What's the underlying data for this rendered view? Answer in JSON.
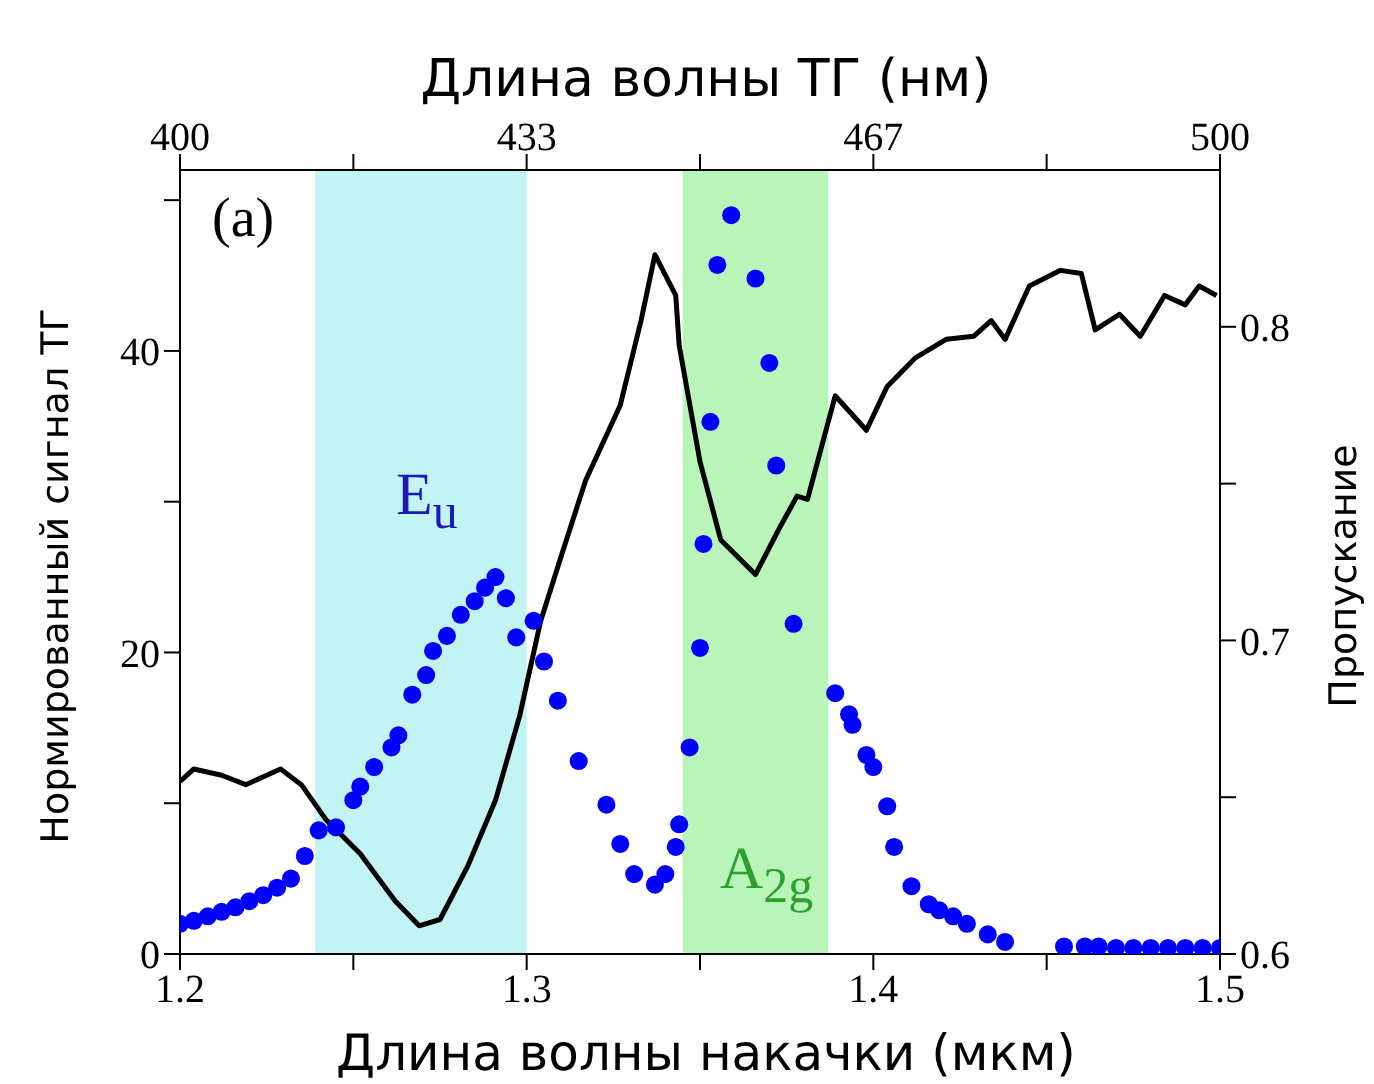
{
  "chart_data": {
    "type": "scatter",
    "xlabel": "Длина волны накачки (мкм)",
    "x2label": "Длина волны ТГ (нм)",
    "ylabel": "Нормированный сигнал ТГ",
    "y2label": "Пропускание",
    "xlim": [
      1.2,
      1.5
    ],
    "xticks": [
      1.2,
      {
        "value": 1.25,
        "label": null
      },
      1.3,
      {
        "value": 1.35,
        "label": null
      },
      1.4,
      {
        "value": 1.45,
        "label": null
      },
      1.5
    ],
    "x2lim": [
      400,
      500
    ],
    "x2ticks": [
      400,
      {
        "value": 416.67,
        "label": null
      },
      {
        "value": 433.33,
        "label": "433"
      },
      {
        "value": 450,
        "label": null
      },
      {
        "value": 466.67,
        "label": "467"
      },
      {
        "value": 483.33,
        "label": null
      },
      500
    ],
    "ylim": [
      0,
      52
    ],
    "yticks": [
      0,
      {
        "value": 10,
        "label": null
      },
      20,
      {
        "value": 30,
        "label": null
      },
      40,
      {
        "value": 50,
        "label": null
      }
    ],
    "y2lim": [
      0.6,
      0.85
    ],
    "y2ticks": [
      0.6,
      {
        "value": 0.65,
        "label": null
      },
      0.7,
      {
        "value": 0.75,
        "label": null
      },
      0.8
    ],
    "grid": false,
    "legend": false,
    "bands": [
      {
        "axis": "x",
        "from": 1.239,
        "to": 1.3,
        "color": "#c2f3f5"
      },
      {
        "axis": "x",
        "from": 1.345,
        "to": 1.387,
        "color": "#b9f5b9"
      }
    ],
    "annotations": [
      "(a)",
      "E$_{u}$",
      "A$_{2g}$"
    ],
    "series": [
      {
        "marker": "circle",
        "color": "#0000ff",
        "x": [
          1.2,
          1.204,
          1.208,
          1.212,
          1.216,
          1.22,
          1.224,
          1.228,
          1.232,
          1.236,
          1.24,
          1.245,
          1.25,
          1.252,
          1.256,
          1.261,
          1.263,
          1.267,
          1.271,
          1.273,
          1.277,
          1.281,
          1.285,
          1.288,
          1.291,
          1.294,
          1.297,
          1.302,
          1.305,
          1.309,
          1.315,
          1.323,
          1.327,
          1.331,
          1.337,
          1.34,
          1.343,
          1.344,
          1.347,
          1.35,
          1.351,
          1.353,
          1.355,
          1.359,
          1.366,
          1.37,
          1.372,
          1.377,
          1.389,
          1.393,
          1.394,
          1.398,
          1.4,
          1.404,
          1.406,
          1.411,
          1.416,
          1.419,
          1.423,
          1.427,
          1.433,
          1.438,
          1.455,
          1.461,
          1.465,
          1.47,
          1.475,
          1.48,
          1.485,
          1.49,
          1.495,
          1.5
        ],
        "values": [
          2.0,
          2.2,
          2.5,
          2.8,
          3.1,
          3.5,
          3.9,
          4.4,
          5.0,
          6.5,
          8.2,
          8.4,
          10.2,
          11.1,
          12.4,
          13.7,
          14.5,
          17.2,
          18.5,
          20.1,
          21.1,
          22.5,
          23.4,
          24.3,
          25.0,
          23.6,
          21.0,
          22.1,
          19.4,
          16.8,
          12.8,
          9.9,
          7.3,
          5.3,
          4.6,
          5.3,
          7.1,
          8.6,
          13.7,
          20.3,
          27.2,
          35.3,
          45.7,
          49.0,
          44.8,
          39.2,
          32.4,
          21.9,
          17.3,
          15.9,
          15.2,
          13.2,
          12.4,
          9.8,
          7.1,
          4.5,
          3.3,
          2.9,
          2.5,
          2.0,
          1.3,
          0.8,
          0.5,
          0.5,
          0.5,
          0.4,
          0.4,
          0.4,
          0.4,
          0.4,
          0.4,
          0.4
        ]
      },
      {
        "type": "line",
        "axis": "y2",
        "marker": "none",
        "line_style": "solid",
        "color": "#000000",
        "x": [
          1.2,
          1.204,
          1.212,
          1.219,
          1.229,
          1.235,
          1.242,
          1.252,
          1.262,
          1.269,
          1.275,
          1.283,
          1.291,
          1.298,
          1.304,
          1.31,
          1.317,
          1.327,
          1.333,
          1.337,
          1.343,
          1.344,
          1.35,
          1.356,
          1.366,
          1.373,
          1.378,
          1.381,
          1.389,
          1.398,
          1.404,
          1.412,
          1.421,
          1.429,
          1.434,
          1.438,
          1.445,
          1.454,
          1.46,
          1.464,
          1.471,
          1.477,
          1.484,
          1.49,
          1.494,
          1.499
        ],
        "values": [
          0.655,
          0.659,
          0.657,
          0.654,
          0.659,
          0.654,
          0.643,
          0.632,
          0.617,
          0.609,
          0.611,
          0.628,
          0.649,
          0.676,
          0.706,
          0.727,
          0.751,
          0.775,
          0.802,
          0.823,
          0.81,
          0.794,
          0.757,
          0.732,
          0.721,
          0.736,
          0.746,
          0.745,
          0.778,
          0.767,
          0.781,
          0.79,
          0.796,
          0.797,
          0.802,
          0.796,
          0.813,
          0.818,
          0.817,
          0.799,
          0.804,
          0.797,
          0.81,
          0.807,
          0.813,
          0.81
        ]
      }
    ]
  }
}
